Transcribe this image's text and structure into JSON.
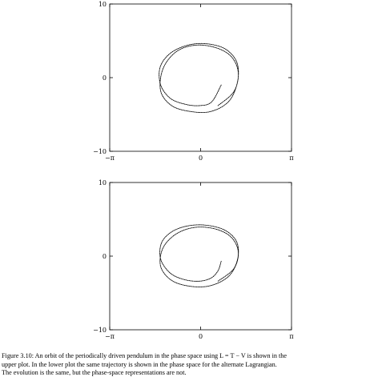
{
  "figure": {
    "caption_lines": [
      "Figure 3.10:  An orbit of the periodically driven pendulum in the phase space using L = T − V is shown in the",
      "upper plot.  In the lower plot the same trajectory is shown in the phase space for the alternate Lagrangian.",
      "The evolution is the same, but the phase-space representations are not."
    ]
  },
  "chart_data": [
    {
      "type": "line",
      "title": "",
      "xlabel": "",
      "ylabel": "",
      "xlim": [
        -3.14159,
        3.14159
      ],
      "ylim": [
        -10,
        10
      ],
      "x_tick_labels": [
        "−π",
        "0",
        "π"
      ],
      "y_tick_labels": [
        "10",
        "0",
        "−10"
      ],
      "grid": false,
      "series": [
        {
          "style": "dotted",
          "x": [
            0.71,
            0.38,
            -0.05,
            -0.55,
            -1.05,
            -1.38,
            -1.4,
            -1.05,
            -0.45,
            0.2,
            0.85,
            1.25,
            1.28,
            0.98,
            0.35,
            -0.35,
            -1.0,
            -1.38,
            -1.3,
            -0.85,
            -0.2,
            0.5,
            1.05,
            1.3,
            1.15,
            0.6
          ],
          "y": [
            -1.0,
            -3.3,
            -3.8,
            -3.6,
            -2.8,
            -1.0,
            1.4,
            3.3,
            4.4,
            4.6,
            3.9,
            2.1,
            -0.5,
            -3.2,
            -4.6,
            -4.6,
            -3.8,
            -1.8,
            1.2,
            3.5,
            4.4,
            4.1,
            2.9,
            0.7,
            -1.9,
            -3.8
          ]
        }
      ]
    },
    {
      "type": "line",
      "title": "",
      "xlabel": "",
      "ylabel": "",
      "xlim": [
        -3.14159,
        3.14159
      ],
      "ylim": [
        -10,
        10
      ],
      "x_tick_labels": [
        "−π",
        "0",
        "π"
      ],
      "y_tick_labels": [
        "10",
        "0",
        "−10"
      ],
      "grid": false,
      "series": [
        {
          "style": "dotted",
          "x": [
            0.71,
            0.6,
            0.35,
            -0.05,
            -0.55,
            -1.05,
            -1.38,
            -1.35,
            -1.0,
            -0.45,
            0.2,
            0.85,
            1.25,
            1.28,
            0.98,
            0.35,
            -0.35,
            -1.0,
            -1.38,
            -1.3,
            -0.85,
            -0.2,
            0.5,
            1.05,
            1.3,
            1.15,
            0.6
          ],
          "y": [
            -0.7,
            -2.0,
            -3.0,
            -3.4,
            -3.2,
            -2.3,
            -0.4,
            1.8,
            3.3,
            4.1,
            4.2,
            3.5,
            1.9,
            -0.4,
            -2.7,
            -4.0,
            -4.1,
            -3.3,
            -1.4,
            1.1,
            3.0,
            3.9,
            3.7,
            2.6,
            0.6,
            -1.7,
            -3.4
          ]
        }
      ]
    }
  ]
}
